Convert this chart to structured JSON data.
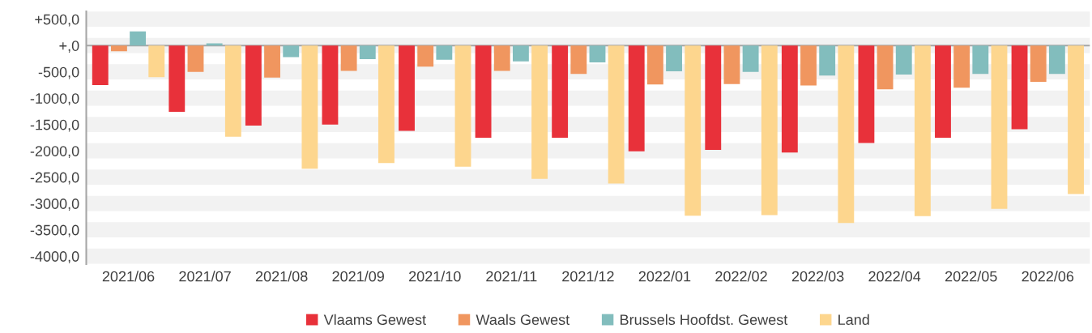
{
  "chart_data": {
    "type": "bar",
    "categories": [
      "2021/06",
      "2021/07",
      "2021/08",
      "2021/09",
      "2021/10",
      "2021/11",
      "2021/12",
      "2022/01",
      "2022/02",
      "2022/03",
      "2022/04",
      "2022/05",
      "2022/06"
    ],
    "series": [
      {
        "name": "Vlaams Gewest",
        "color": "#e8313a",
        "values": [
          -750,
          -1260,
          -1520,
          -1500,
          -1620,
          -1750,
          -1750,
          -2010,
          -1980,
          -2030,
          -1850,
          -1750,
          -1590
        ]
      },
      {
        "name": "Waals Gewest",
        "color": "#f0965f",
        "values": [
          -110,
          -500,
          -610,
          -480,
          -400,
          -480,
          -540,
          -740,
          -730,
          -760,
          -830,
          -800,
          -690
        ]
      },
      {
        "name": "Brussels Hoofdst. Gewest",
        "color": "#82bdbd",
        "values": [
          270,
          40,
          -220,
          -260,
          -270,
          -300,
          -320,
          -490,
          -500,
          -570,
          -550,
          -540,
          -540
        ]
      },
      {
        "name": "Land",
        "color": "#fdd68e",
        "values": [
          -600,
          -1730,
          -2340,
          -2230,
          -2300,
          -2530,
          -2620,
          -3230,
          -3220,
          -3370,
          -3240,
          -3100,
          -2820
        ]
      }
    ],
    "ylim": [
      -4150,
      650
    ],
    "yticks": [
      {
        "value": 500,
        "label": "+500,0"
      },
      {
        "value": 0,
        "label": "+,0"
      },
      {
        "value": -500,
        "label": "-500,0"
      },
      {
        "value": -1000,
        "label": "-1000,0"
      },
      {
        "value": -1500,
        "label": "-1500,0"
      },
      {
        "value": -2000,
        "label": "-2000,0"
      },
      {
        "value": -2500,
        "label": "-2500,0"
      },
      {
        "value": -3000,
        "label": "-3000,0"
      },
      {
        "value": -3500,
        "label": "-3500,0"
      },
      {
        "value": -4000,
        "label": "-4000,0"
      }
    ],
    "grid": "y",
    "legend": "bottom"
  }
}
